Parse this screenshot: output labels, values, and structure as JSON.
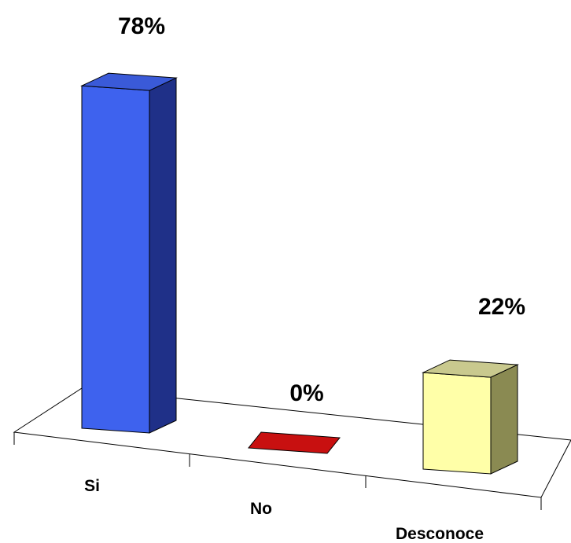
{
  "chart_data": {
    "type": "bar",
    "categories": [
      "Si",
      "No",
      "Desconoce"
    ],
    "values": [
      78,
      0,
      22
    ],
    "data_labels": [
      "78%",
      "0%",
      "22%"
    ],
    "ylim": [
      0,
      80
    ],
    "grid": false,
    "legend": "none",
    "style": "3d-column",
    "colors": {
      "Si": {
        "front": "#3e62ee",
        "side": "#1f3088",
        "top": "#3a5ad8"
      },
      "No": {
        "front": "#c40000",
        "side": "#7a0000",
        "top": "#c81010"
      },
      "Desconoce": {
        "front": "#ffffa8",
        "side": "#8a8a52",
        "top": "#c9c98e"
      },
      "outline": "#000000"
    }
  }
}
